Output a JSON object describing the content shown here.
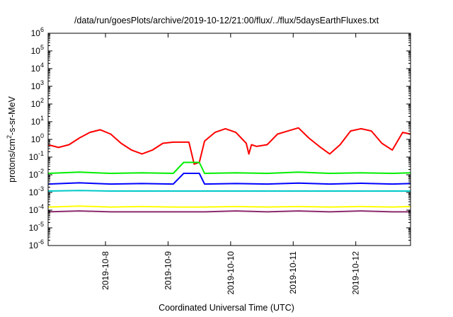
{
  "chart_data": {
    "type": "line",
    "title": "/data/run/goesPlots/archive/2019-10-12/21:00/flux/../flux/5daysEarthFluxes.txt",
    "xlabel": "Coordinated Universal Time (UTC)",
    "ylabel": "protons/cm²-s-sr-MeV",
    "y_scale": "log",
    "ylim": [
      1e-06,
      1000000.0
    ],
    "xlim": [
      "2019-10-07T02:00",
      "2019-10-12T21:00"
    ],
    "x_ticks": [
      "2019-10-8",
      "2019-10-9",
      "2019-10-10",
      "2019-10-11",
      "2019-10-12"
    ],
    "y_tick_exponents": [
      -6,
      -5,
      -4,
      -3,
      -2,
      -1,
      0,
      1,
      2,
      3,
      4,
      5,
      6
    ],
    "grid": false,
    "legend": "none",
    "series": [
      {
        "color": "#ff0000",
        "x": [
          "2019-10-07T02:00",
          "2019-10-07T06:00",
          "2019-10-07T10:00",
          "2019-10-07T14:00",
          "2019-10-07T18:00",
          "2019-10-07T22:00",
          "2019-10-08T02:00",
          "2019-10-08T06:00",
          "2019-10-08T10:00",
          "2019-10-08T14:00",
          "2019-10-08T18:00",
          "2019-10-08T22:00",
          "2019-10-09T02:00",
          "2019-10-09T06:00",
          "2019-10-09T08:00",
          "2019-10-09T10:00",
          "2019-10-09T12:00",
          "2019-10-09T14:00",
          "2019-10-09T18:00",
          "2019-10-09T22:00",
          "2019-10-10T02:00",
          "2019-10-10T06:00",
          "2019-10-10T07:00",
          "2019-10-10T08:00",
          "2019-10-10T10:00",
          "2019-10-10T14:00",
          "2019-10-10T18:00",
          "2019-10-10T22:00",
          "2019-10-11T02:00",
          "2019-10-11T06:00",
          "2019-10-11T10:00",
          "2019-10-11T14:00",
          "2019-10-11T18:00",
          "2019-10-11T22:00",
          "2019-10-12T02:00",
          "2019-10-12T06:00",
          "2019-10-12T10:00",
          "2019-10-12T14:00",
          "2019-10-12T18:00",
          "2019-10-12T21:00"
        ],
        "values": [
          0.5,
          0.35,
          0.5,
          1.2,
          2.5,
          3.5,
          2.0,
          0.6,
          0.25,
          0.15,
          0.25,
          0.6,
          0.7,
          0.7,
          0.7,
          0.04,
          0.05,
          0.8,
          2.5,
          4.0,
          2.5,
          0.6,
          0.15,
          0.5,
          0.4,
          0.5,
          2.0,
          3.0,
          4.5,
          1.2,
          0.4,
          0.15,
          0.5,
          3.0,
          4.0,
          3.0,
          0.6,
          0.25,
          2.5,
          2.0
        ]
      },
      {
        "color": "#00ee00",
        "x": [
          "2019-10-07T02:00",
          "2019-10-07T14:00",
          "2019-10-08T02:00",
          "2019-10-08T14:00",
          "2019-10-09T02:00",
          "2019-10-09T06:00",
          "2019-10-09T12:00",
          "2019-10-09T14:00",
          "2019-10-10T02:00",
          "2019-10-10T14:00",
          "2019-10-11T02:00",
          "2019-10-11T14:00",
          "2019-10-12T02:00",
          "2019-10-12T14:00",
          "2019-10-12T21:00"
        ],
        "values": [
          0.012,
          0.014,
          0.012,
          0.013,
          0.012,
          0.05,
          0.05,
          0.012,
          0.013,
          0.012,
          0.014,
          0.012,
          0.013,
          0.012,
          0.013
        ]
      },
      {
        "color": "#0000ff",
        "x": [
          "2019-10-07T02:00",
          "2019-10-07T14:00",
          "2019-10-08T02:00",
          "2019-10-08T14:00",
          "2019-10-09T02:00",
          "2019-10-09T06:00",
          "2019-10-09T12:00",
          "2019-10-09T14:00",
          "2019-10-10T02:00",
          "2019-10-10T14:00",
          "2019-10-11T02:00",
          "2019-10-11T14:00",
          "2019-10-12T02:00",
          "2019-10-12T14:00",
          "2019-10-12T21:00"
        ],
        "values": [
          0.003,
          0.0035,
          0.003,
          0.0032,
          0.003,
          0.012,
          0.012,
          0.003,
          0.0032,
          0.003,
          0.0034,
          0.003,
          0.0033,
          0.003,
          0.0032
        ]
      },
      {
        "color": "#00c8c8",
        "x": [
          "2019-10-07T02:00",
          "2019-10-07T14:00",
          "2019-10-08T02:00",
          "2019-10-08T14:00",
          "2019-10-09T02:00",
          "2019-10-09T10:00",
          "2019-10-09T14:00",
          "2019-10-10T02:00",
          "2019-10-10T14:00",
          "2019-10-11T02:00",
          "2019-10-11T14:00",
          "2019-10-12T02:00",
          "2019-10-12T14:00",
          "2019-10-12T21:00"
        ],
        "values": [
          0.0012,
          0.0013,
          0.0012,
          0.0012,
          0.0012,
          0.0012,
          0.0012,
          0.0012,
          0.0012,
          0.0012,
          0.0012,
          0.0012,
          0.0012,
          0.0012
        ]
      },
      {
        "color": "#ffff00",
        "x": [
          "2019-10-07T02:00",
          "2019-10-07T14:00",
          "2019-10-08T02:00",
          "2019-10-08T14:00",
          "2019-10-09T02:00",
          "2019-10-09T14:00",
          "2019-10-10T02:00",
          "2019-10-10T14:00",
          "2019-10-11T02:00",
          "2019-10-11T14:00",
          "2019-10-12T02:00",
          "2019-10-12T14:00",
          "2019-10-12T21:00"
        ],
        "values": [
          0.00015,
          0.00017,
          0.00015,
          0.00016,
          0.00015,
          0.00015,
          0.00016,
          0.00015,
          0.00016,
          0.00015,
          0.00016,
          0.00015,
          0.00016
        ]
      },
      {
        "color": "#8b2a6b",
        "x": [
          "2019-10-07T02:00",
          "2019-10-07T14:00",
          "2019-10-08T02:00",
          "2019-10-08T14:00",
          "2019-10-09T02:00",
          "2019-10-09T14:00",
          "2019-10-10T02:00",
          "2019-10-10T14:00",
          "2019-10-11T02:00",
          "2019-10-11T14:00",
          "2019-10-12T02:00",
          "2019-10-12T14:00",
          "2019-10-12T21:00"
        ],
        "values": [
          8e-05,
          9e-05,
          8e-05,
          8e-05,
          8e-05,
          8e-05,
          9e-05,
          8e-05,
          9e-05,
          8e-05,
          9e-05,
          8e-05,
          8e-05
        ]
      }
    ]
  }
}
